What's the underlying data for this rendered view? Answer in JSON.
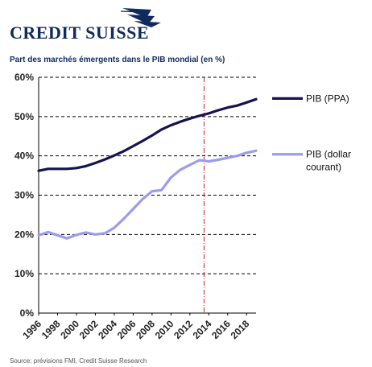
{
  "header": {
    "logo_text": "CREDIT SUISSE",
    "subtitle": "Part des marchés émergents dans le PIB mondial (en %)"
  },
  "footer": {
    "source": "Source: prévisions FMI, Credit Suisse Research"
  },
  "colors": {
    "brand": "#0f2a5c",
    "ppa": "#14144f",
    "usd": "#9a9cec",
    "forecast_line": "#c0282e",
    "grid": "#000000"
  },
  "chart_data": {
    "type": "line",
    "title": "Part des marchés émergents dans le PIB mondial (en %)",
    "xlabel": "",
    "ylabel": "",
    "xlim": [
      1996,
      2019
    ],
    "ylim": [
      0,
      60
    ],
    "y_tick_labels": [
      "0%",
      "10%",
      "20%",
      "30%",
      "40%",
      "50%",
      "60%"
    ],
    "x_tick_labels": [
      "1996",
      "1998",
      "2000",
      "2002",
      "2004",
      "2006",
      "2008",
      "2010",
      "2012",
      "2014",
      "2016",
      "2018"
    ],
    "grid": "horizontal dashed",
    "forecast_marker_x": 2013.5,
    "legend_position": "right",
    "x": [
      1996,
      1997,
      1998,
      1999,
      2000,
      2001,
      2002,
      2003,
      2004,
      2005,
      2006,
      2007,
      2008,
      2009,
      2010,
      2011,
      2012,
      2013,
      2014,
      2015,
      2016,
      2017,
      2018,
      2019
    ],
    "series": [
      {
        "name": "PIB (PPA)",
        "color": "#14144f",
        "values": [
          36.2,
          36.7,
          36.7,
          36.7,
          36.9,
          37.4,
          38.2,
          39.1,
          40.1,
          41.2,
          42.5,
          43.8,
          45.2,
          46.7,
          47.8,
          48.7,
          49.5,
          50.2,
          50.8,
          51.6,
          52.3,
          52.8,
          53.6,
          54.4
        ]
      },
      {
        "name": "PIB (dollar courant)",
        "color": "#9a9cec",
        "values": [
          19.8,
          20.6,
          19.8,
          19.0,
          19.9,
          20.5,
          20.0,
          20.3,
          21.7,
          24.0,
          26.5,
          29.0,
          31.0,
          31.3,
          34.5,
          36.5,
          37.7,
          38.9,
          38.6,
          39.0,
          39.5,
          40.0,
          40.8,
          41.3
        ]
      }
    ],
    "legend_lines": [
      [
        "PIB (PPA)"
      ],
      [
        "PIB (dollar",
        "courant)"
      ]
    ]
  }
}
